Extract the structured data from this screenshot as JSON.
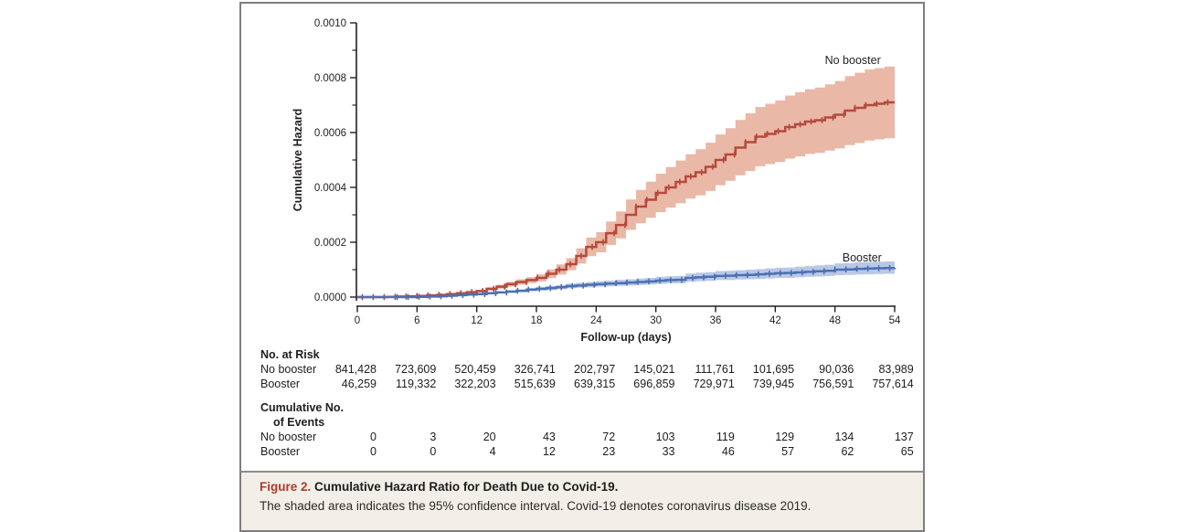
{
  "chart_data": {
    "type": "line",
    "step": true,
    "title": "",
    "xlabel": "Follow-up (days)",
    "ylabel": "Cumulative Hazard",
    "y_unit_multiplier": "1e-4",
    "xlim": [
      0,
      54
    ],
    "ylim_e4": [
      0,
      10
    ],
    "xticks": [
      0,
      6,
      12,
      18,
      24,
      30,
      36,
      42,
      48,
      54
    ],
    "yticks": [
      {
        "v": 0,
        "label": "0.0000"
      },
      {
        "v": 2,
        "label": "0.0002"
      },
      {
        "v": 4,
        "label": "0.0004"
      },
      {
        "v": 6,
        "label": "0.0006"
      },
      {
        "v": 8,
        "label": "0.0008"
      },
      {
        "v": 10,
        "label": "0.0010"
      }
    ],
    "yticks_minor": [
      1,
      3,
      5,
      7,
      9
    ],
    "grid": false,
    "ci_note": "shaded area = 95% confidence interval",
    "days": [
      0,
      1,
      2,
      3,
      4,
      5,
      6,
      7,
      8,
      9,
      10,
      11,
      12,
      13,
      14,
      15,
      16,
      17,
      18,
      19,
      20,
      21,
      22,
      23,
      24,
      25,
      26,
      27,
      28,
      29,
      30,
      31,
      32,
      33,
      34,
      35,
      36,
      37,
      38,
      39,
      40,
      41,
      42,
      43,
      44,
      45,
      46,
      47,
      48,
      49,
      50,
      51,
      52,
      53,
      54
    ],
    "series": [
      {
        "name": "No booster",
        "line_color": "#b5493c",
        "band_color": "#eab8a6",
        "censor_start": 0.5,
        "censor_step": 1.1,
        "values_e4": [
          0,
          0,
          0,
          0.01,
          0.02,
          0.03,
          0.04,
          0.06,
          0.08,
          0.11,
          0.14,
          0.18,
          0.22,
          0.3,
          0.38,
          0.47,
          0.55,
          0.62,
          0.7,
          0.85,
          1,
          1.2,
          1.5,
          1.83,
          2,
          2.33,
          2.63,
          3,
          3.3,
          3.55,
          3.8,
          4,
          4.2,
          4.4,
          4.55,
          4.75,
          5,
          5.2,
          5.45,
          5.65,
          5.85,
          5.95,
          6.05,
          6.2,
          6.3,
          6.4,
          6.45,
          6.55,
          6.65,
          6.8,
          6.9,
          7,
          7.05,
          7.1,
          7.1
        ],
        "ci_lower_e4": [
          0,
          0,
          0,
          0.01,
          0.02,
          0.02,
          0.03,
          0.05,
          0.07,
          0.09,
          0.11,
          0.15,
          0.18,
          0.24,
          0.31,
          0.38,
          0.45,
          0.51,
          0.57,
          0.69,
          0.82,
          0.98,
          1.22,
          1.49,
          1.63,
          1.9,
          2.14,
          2.45,
          2.69,
          2.89,
          3.1,
          3.26,
          3.42,
          3.59,
          3.71,
          3.87,
          4.08,
          4.24,
          4.44,
          4.6,
          4.77,
          4.85,
          4.93,
          5.05,
          5.13,
          5.22,
          5.26,
          5.34,
          5.42,
          5.54,
          5.62,
          5.71,
          5.75,
          5.79,
          5.79
        ],
        "ci_upper_e4": [
          0,
          0,
          0,
          0.01,
          0.02,
          0.04,
          0.05,
          0.07,
          0.09,
          0.13,
          0.17,
          0.21,
          0.26,
          0.36,
          0.45,
          0.56,
          0.65,
          0.73,
          0.83,
          1.01,
          1.19,
          1.42,
          1.78,
          2.17,
          2.37,
          2.76,
          3.12,
          3.56,
          3.91,
          4.21,
          4.5,
          4.74,
          4.98,
          5.21,
          5.39,
          5.63,
          5.93,
          6.16,
          6.46,
          6.7,
          6.93,
          7.05,
          7.17,
          7.35,
          7.47,
          7.58,
          7.64,
          7.76,
          7.88,
          8.06,
          8.18,
          8.3,
          8.35,
          8.41,
          8.41
        ]
      },
      {
        "name": "Booster",
        "line_color": "#4b70b4",
        "band_color": "#bac8e6",
        "censor_start": 4.0,
        "censor_step": 1.1,
        "values_e4": [
          0,
          0,
          0,
          0,
          0,
          0,
          0.01,
          0.02,
          0.03,
          0.05,
          0.07,
          0.09,
          0.11,
          0.14,
          0.17,
          0.2,
          0.23,
          0.27,
          0.3,
          0.33,
          0.36,
          0.4,
          0.42,
          0.45,
          0.47,
          0.49,
          0.51,
          0.53,
          0.55,
          0.57,
          0.6,
          0.62,
          0.63,
          0.7,
          0.72,
          0.74,
          0.77,
          0.78,
          0.8,
          0.81,
          0.83,
          0.85,
          0.87,
          0.88,
          0.9,
          0.92,
          0.94,
          0.96,
          1,
          1.01,
          1.03,
          1.04,
          1.05,
          1.06,
          1.07
        ],
        "ci_lower_e4": [
          0,
          0,
          0,
          0,
          0,
          0,
          0.01,
          0.02,
          0.02,
          0.04,
          0.06,
          0.07,
          0.09,
          0.11,
          0.14,
          0.16,
          0.18,
          0.22,
          0.24,
          0.26,
          0.29,
          0.32,
          0.34,
          0.36,
          0.38,
          0.39,
          0.41,
          0.42,
          0.44,
          0.46,
          0.48,
          0.5,
          0.5,
          0.56,
          0.58,
          0.59,
          0.62,
          0.62,
          0.64,
          0.65,
          0.66,
          0.68,
          0.7,
          0.7,
          0.72,
          0.74,
          0.75,
          0.77,
          0.8,
          0.81,
          0.82,
          0.83,
          0.84,
          0.85,
          0.86
        ],
        "ci_upper_e4": [
          0,
          0,
          0,
          0,
          0,
          0,
          0.01,
          0.02,
          0.04,
          0.06,
          0.09,
          0.11,
          0.14,
          0.17,
          0.21,
          0.25,
          0.28,
          0.33,
          0.37,
          0.41,
          0.44,
          0.49,
          0.52,
          0.55,
          0.58,
          0.6,
          0.63,
          0.65,
          0.68,
          0.7,
          0.74,
          0.76,
          0.77,
          0.86,
          0.89,
          0.91,
          0.95,
          0.96,
          0.98,
          1,
          1.02,
          1.05,
          1.07,
          1.08,
          1.11,
          1.13,
          1.16,
          1.18,
          1.23,
          1.24,
          1.27,
          1.28,
          1.29,
          1.3,
          1.32
        ]
      }
    ],
    "annotations": [
      {
        "text": "No booster",
        "day": 52.6,
        "value_e4": 8.5,
        "anchor": "end"
      },
      {
        "text": "Booster",
        "day": 52.7,
        "value_e4": 1.3,
        "anchor": "end"
      }
    ]
  },
  "risk_table": {
    "header": "No. at Risk",
    "rows": [
      {
        "label": "No booster",
        "values": [
          "841,428",
          "723,609",
          "520,459",
          "326,741",
          "202,797",
          "145,021",
          "111,761",
          "101,695",
          "90,036",
          "83,989"
        ]
      },
      {
        "label": "Booster",
        "values": [
          "46,259",
          "119,332",
          "322,203",
          "515,639",
          "639,315",
          "696,859",
          "729,971",
          "739,945",
          "756,591",
          "757,614"
        ]
      }
    ]
  },
  "events_table": {
    "header_line1": "Cumulative No.",
    "header_line2": "of Events",
    "rows": [
      {
        "label": "No booster",
        "values": [
          "0",
          "3",
          "20",
          "43",
          "72",
          "103",
          "119",
          "129",
          "134",
          "137"
        ]
      },
      {
        "label": "Booster",
        "values": [
          "0",
          "0",
          "4",
          "12",
          "23",
          "33",
          "46",
          "57",
          "62",
          "65"
        ]
      }
    ]
  },
  "caption": {
    "label": "Figure 2.",
    "title": "Cumulative Hazard Ratio for Death Due to Covid-19.",
    "body": "The shaded area indicates the 95% confidence interval. Covid-19 denotes coronavirus disease 2019."
  },
  "colors": {
    "no_booster_line": "#b5493c",
    "no_booster_band": "#eab8a6",
    "booster_line": "#4b70b4",
    "booster_band": "#bac8e6",
    "caption_label_red": "#b23a2c",
    "caption_panel_bg": "#f1efe8",
    "figure_border": "#7e7e7e",
    "axis_color": "#231f20"
  }
}
